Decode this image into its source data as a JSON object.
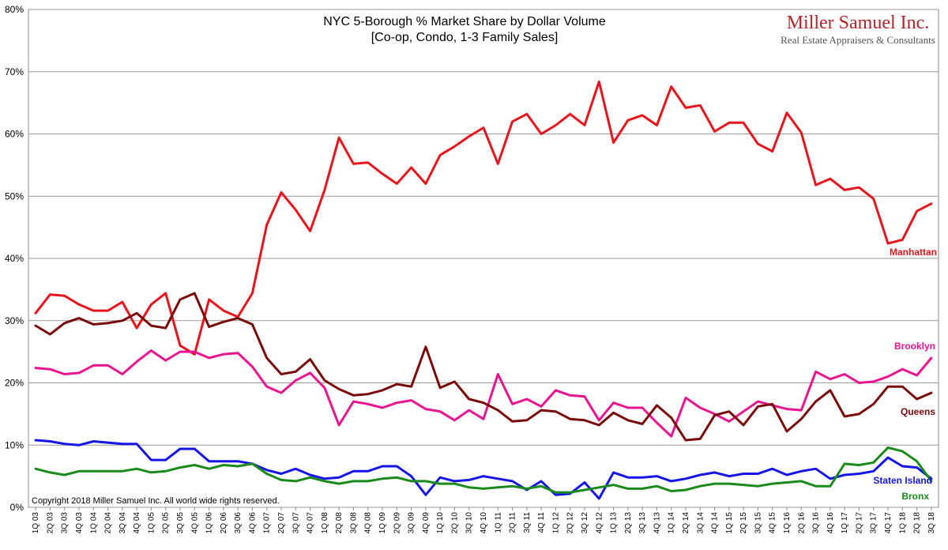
{
  "brand": {
    "name": "Miller Samuel Inc.",
    "tagline": "Real Estate Appraisers & Consultants",
    "color": "#b3242a"
  },
  "chart_data": {
    "type": "line",
    "title": [
      "NYC 5-Borough % Market Share by Dollar Volume",
      "[Co-op, Condo, 1-3 Family Sales]"
    ],
    "xlabel": "",
    "ylabel": "",
    "ylim": [
      0,
      80
    ],
    "yticks": [
      "0%",
      "10%",
      "20%",
      "30%",
      "40%",
      "50%",
      "60%",
      "70%",
      "80%"
    ],
    "grid": true,
    "copyright": "Copyright 2018 Miller Samuel Inc.  All world wide rights reserved.",
    "categories": [
      "1Q 03",
      "2Q 03",
      "3Q 03",
      "4Q 03",
      "1Q 04",
      "2Q 04",
      "3Q 04",
      "4Q 04",
      "1Q 05",
      "2Q 05",
      "3Q 05",
      "4Q 05",
      "1Q 06",
      "2Q 06",
      "3Q 06",
      "4Q 06",
      "1Q 07",
      "2Q 07",
      "3Q 07",
      "4Q 07",
      "1Q 08",
      "2Q 08",
      "3Q 08",
      "4Q 08",
      "1Q 09",
      "2Q 09",
      "3Q 09",
      "4Q 09",
      "1Q 10",
      "2Q 10",
      "3Q 10",
      "4Q 10",
      "1Q 11",
      "2Q 11",
      "3Q 11",
      "4Q 11",
      "1Q 12",
      "2Q 12",
      "3Q 12",
      "4Q 12",
      "1Q 13",
      "2Q 13",
      "3Q 13",
      "4Q 13",
      "1Q 14",
      "2Q 14",
      "3Q 14",
      "4Q 14",
      "1Q 15",
      "2Q 15",
      "3Q 15",
      "4Q 15",
      "1Q 16",
      "2Q 16",
      "3Q 16",
      "4Q 16",
      "1Q 17",
      "2Q 17",
      "3Q 17",
      "4Q 17",
      "1Q 18",
      "2Q 18",
      "3Q 18"
    ],
    "series": [
      {
        "name": "Manhattan",
        "color": "#e8141c",
        "values": [
          31.2,
          34.2,
          34.0,
          32.6,
          31.6,
          31.6,
          33.0,
          28.8,
          32.6,
          34.4,
          26.0,
          24.6,
          33.4,
          31.6,
          30.6,
          34.4,
          45.4,
          50.6,
          47.8,
          44.4,
          51.0,
          59.4,
          55.2,
          55.4,
          53.6,
          52.0,
          54.6,
          52.0,
          56.6,
          58.0,
          59.6,
          61.0,
          55.2,
          62.0,
          63.2,
          60.0,
          61.4,
          63.2,
          61.4,
          68.4,
          58.6,
          62.2,
          63.0,
          61.4,
          67.6,
          64.2,
          64.6,
          60.4,
          61.8,
          61.8,
          58.4,
          57.2,
          63.4,
          60.2,
          51.8,
          52.8,
          51.0,
          51.4,
          49.6,
          42.4,
          43.0,
          47.6,
          48.8
        ]
      },
      {
        "name": "Brooklyn",
        "color": "#e9148f",
        "values": [
          22.4,
          22.2,
          21.4,
          21.6,
          22.8,
          22.8,
          21.4,
          23.4,
          25.2,
          23.6,
          25.0,
          25.0,
          24.0,
          24.6,
          24.8,
          22.6,
          19.4,
          18.4,
          20.4,
          21.6,
          19.2,
          13.2,
          17.0,
          16.6,
          16.0,
          16.8,
          17.2,
          15.8,
          15.4,
          14.0,
          15.6,
          14.2,
          21.4,
          16.6,
          17.4,
          16.2,
          18.8,
          18.0,
          17.8,
          14.0,
          16.8,
          16.0,
          16.0,
          13.6,
          11.4,
          17.6,
          16.0,
          15.0,
          13.8,
          15.4,
          17.0,
          16.4,
          15.8,
          15.6,
          21.8,
          20.6,
          21.4,
          20.0,
          20.2,
          21.0,
          22.2,
          21.2,
          24.0
        ]
      },
      {
        "name": "Queens",
        "color": "#7a0a0a",
        "values": [
          29.2,
          27.8,
          29.6,
          30.4,
          29.4,
          29.6,
          30.0,
          31.2,
          29.2,
          28.8,
          33.4,
          34.4,
          29.0,
          29.8,
          30.4,
          29.4,
          24.0,
          21.4,
          21.8,
          23.8,
          20.4,
          19.0,
          18.0,
          18.2,
          18.8,
          19.8,
          19.4,
          25.8,
          19.2,
          20.2,
          17.4,
          16.8,
          15.6,
          13.8,
          14.0,
          15.6,
          15.4,
          14.2,
          14.0,
          13.2,
          15.2,
          14.0,
          13.4,
          16.4,
          14.4,
          10.8,
          11.0,
          14.8,
          15.4,
          13.2,
          16.2,
          16.6,
          12.2,
          14.2,
          17.0,
          18.8,
          14.6,
          15.0,
          16.6,
          19.4,
          19.4,
          17.4,
          18.4
        ]
      },
      {
        "name": "Staten Island",
        "color": "#1515e6",
        "values": [
          10.8,
          10.6,
          10.2,
          10.0,
          10.6,
          10.4,
          10.2,
          10.2,
          7.6,
          7.6,
          9.4,
          9.4,
          7.4,
          7.4,
          7.4,
          7.0,
          6.0,
          5.4,
          6.2,
          5.2,
          4.6,
          4.8,
          5.8,
          5.8,
          6.6,
          6.6,
          5.0,
          2.0,
          4.8,
          4.2,
          4.4,
          5.0,
          4.6,
          4.2,
          2.8,
          4.2,
          2.0,
          2.2,
          4.0,
          1.4,
          5.6,
          4.8,
          4.8,
          5.0,
          4.2,
          4.6,
          5.2,
          5.6,
          5.0,
          5.4,
          5.4,
          6.2,
          5.2,
          5.8,
          6.2,
          4.6,
          5.2,
          5.4,
          5.8,
          8.0,
          6.6,
          6.4,
          4.6
        ]
      },
      {
        "name": "Bronx",
        "color": "#1a8a1a",
        "values": [
          6.2,
          5.6,
          5.2,
          5.8,
          5.8,
          5.8,
          5.8,
          6.2,
          5.6,
          5.8,
          6.4,
          6.8,
          6.2,
          6.8,
          6.6,
          7.0,
          5.4,
          4.4,
          4.2,
          4.8,
          4.2,
          3.8,
          4.2,
          4.2,
          4.6,
          4.8,
          4.2,
          4.2,
          3.8,
          3.8,
          3.2,
          3.0,
          3.2,
          3.4,
          3.0,
          3.4,
          2.4,
          2.4,
          2.8,
          3.2,
          3.6,
          3.0,
          3.0,
          3.4,
          2.6,
          2.8,
          3.4,
          3.8,
          3.8,
          3.6,
          3.4,
          3.8,
          4.0,
          4.2,
          3.4,
          3.4,
          7.0,
          6.8,
          7.2,
          9.6,
          9.0,
          7.4,
          4.2
        ]
      }
    ]
  }
}
